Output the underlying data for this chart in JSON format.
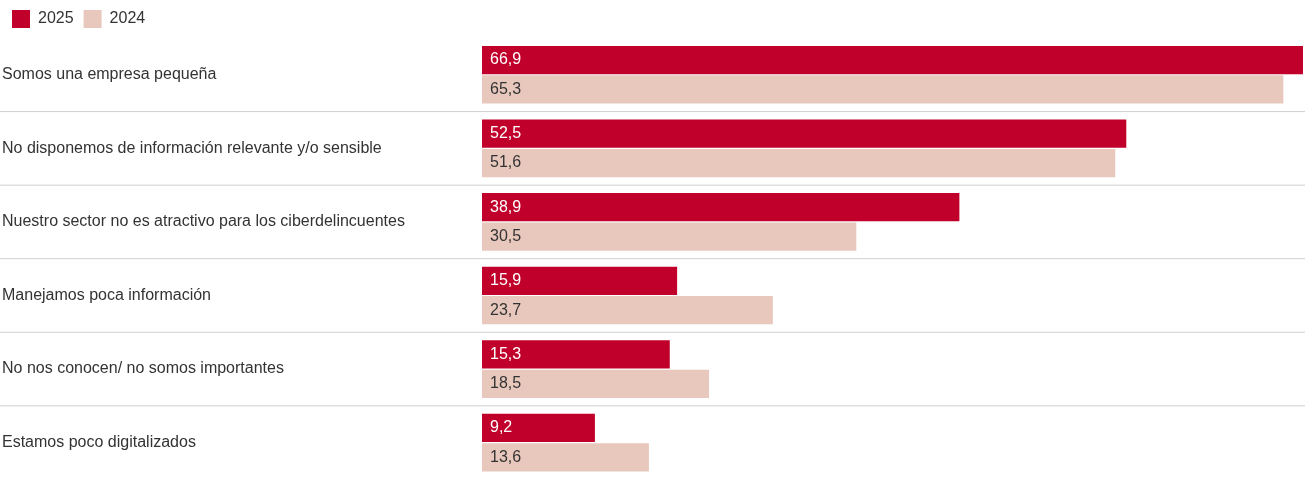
{
  "chart_data": {
    "type": "bar",
    "orientation": "horizontal",
    "categories": [
      "Somos una empresa pequeña",
      "No disponemos de información relevante y/o sensible",
      "Nuestro sector no es atractivo para los ciberdelincuentes",
      "Manejamos poca información",
      "No nos conocen/ no somos importantes",
      "Estamos poco digitalizados"
    ],
    "series": [
      {
        "name": "2025",
        "color": "#c0002a",
        "values": [
          66.9,
          52.5,
          38.9,
          15.9,
          15.3,
          9.2
        ],
        "value_labels": [
          "66,9",
          "52,5",
          "38,9",
          "15,9",
          "15,3",
          "9,2"
        ]
      },
      {
        "name": "2024",
        "color": "#e8c8bd",
        "values": [
          65.3,
          51.6,
          30.5,
          23.7,
          18.5,
          13.6
        ],
        "value_labels": [
          "65,3",
          "51,6",
          "30,5",
          "23,7",
          "18,5",
          "13,6"
        ]
      }
    ],
    "tick_labels": "y",
    "legend": "top left",
    "grid": "y"
  }
}
